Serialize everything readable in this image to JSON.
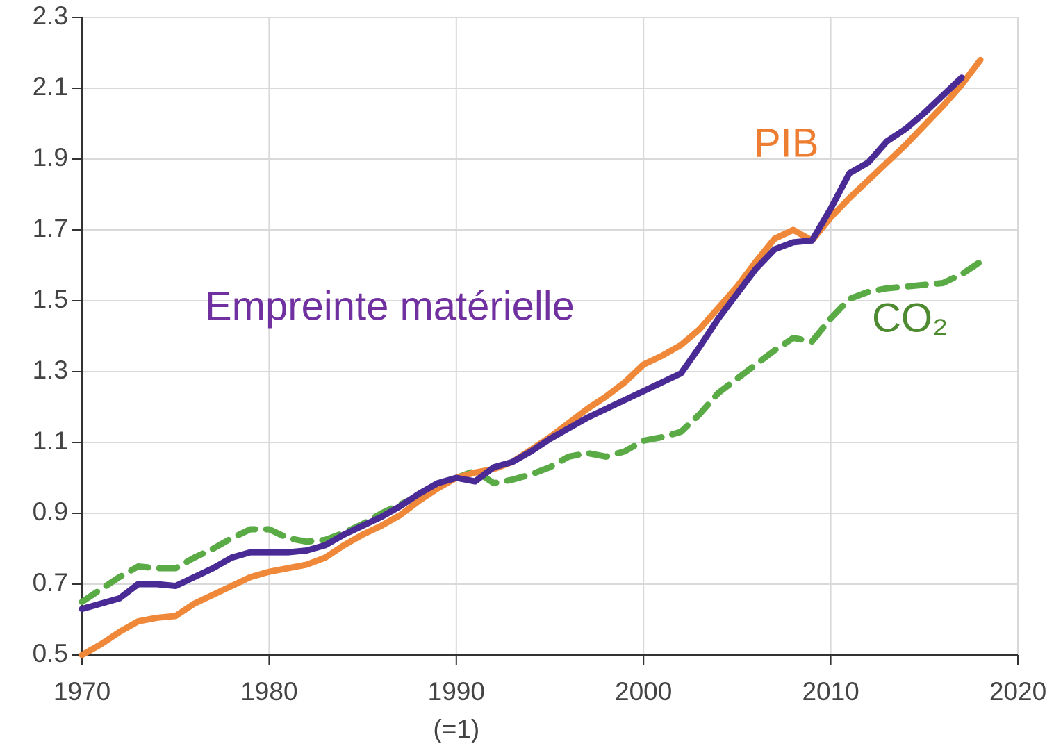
{
  "chart_data": {
    "type": "line",
    "x": [
      1970,
      1971,
      1972,
      1973,
      1974,
      1975,
      1976,
      1977,
      1978,
      1979,
      1980,
      1981,
      1982,
      1983,
      1984,
      1985,
      1986,
      1987,
      1988,
      1989,
      1990,
      1991,
      1992,
      1993,
      1994,
      1995,
      1996,
      1997,
      1998,
      1999,
      2000,
      2001,
      2002,
      2003,
      2004,
      2005,
      2006,
      2007,
      2008,
      2009,
      2010,
      2011,
      2012,
      2013,
      2014,
      2015,
      2016,
      2017,
      2018
    ],
    "series": [
      {
        "name": "Empreinte matérielle",
        "color": "#4a2b96",
        "label_color": "#7030a0",
        "dashed": false,
        "values": [
          0.63,
          0.645,
          0.66,
          0.7,
          0.7,
          0.695,
          0.72,
          0.745,
          0.775,
          0.79,
          0.79,
          0.79,
          0.795,
          0.81,
          0.84,
          0.865,
          0.89,
          0.92,
          0.955,
          0.985,
          1.0,
          0.99,
          1.03,
          1.045,
          1.075,
          1.11,
          1.14,
          1.17,
          1.195,
          1.22,
          1.245,
          1.27,
          1.295,
          1.37,
          1.45,
          1.52,
          1.59,
          1.645,
          1.665,
          1.67,
          1.76,
          1.86,
          1.89,
          1.95,
          1.985,
          2.03,
          2.08,
          2.13,
          null
        ]
      },
      {
        "name": "PIB",
        "color": "#f0883a",
        "label_color": "#ed7d31",
        "dashed": false,
        "values": [
          0.5,
          0.53,
          0.565,
          0.595,
          0.605,
          0.61,
          0.645,
          0.67,
          0.695,
          0.72,
          0.735,
          0.745,
          0.755,
          0.775,
          0.81,
          0.84,
          0.865,
          0.895,
          0.935,
          0.97,
          1.0,
          1.015,
          1.025,
          1.045,
          1.08,
          1.115,
          1.155,
          1.195,
          1.23,
          1.27,
          1.32,
          1.345,
          1.375,
          1.42,
          1.48,
          1.54,
          1.61,
          1.675,
          1.7,
          1.67,
          1.735,
          1.79,
          1.84,
          1.89,
          1.94,
          1.995,
          2.05,
          2.11,
          2.18
        ]
      },
      {
        "name": "CO₂",
        "color": "#5aaa46",
        "label_color": "#4e8a2f",
        "dashed": true,
        "values": [
          0.65,
          0.685,
          0.72,
          0.75,
          0.745,
          0.745,
          0.775,
          0.8,
          0.83,
          0.855,
          0.855,
          0.83,
          0.82,
          0.825,
          0.845,
          0.87,
          0.9,
          0.925,
          0.95,
          0.98,
          1.0,
          1.02,
          0.985,
          0.995,
          1.01,
          1.03,
          1.06,
          1.07,
          1.06,
          1.075,
          1.105,
          1.115,
          1.13,
          1.18,
          1.24,
          1.28,
          1.32,
          1.36,
          1.395,
          1.385,
          1.45,
          1.505,
          1.525,
          1.535,
          1.54,
          1.545,
          1.55,
          1.575,
          1.61
        ]
      }
    ],
    "xlim": [
      1970,
      2020
    ],
    "xticks": [
      1970,
      1980,
      1990,
      2000,
      2010,
      2020
    ],
    "ylim": [
      0.5,
      2.3
    ],
    "yticks": [
      0.5,
      0.7,
      0.9,
      1.1,
      1.3,
      1.5,
      1.7,
      1.9,
      2.1,
      2.3
    ],
    "annotations": [
      "(=1)"
    ],
    "grid": true
  }
}
